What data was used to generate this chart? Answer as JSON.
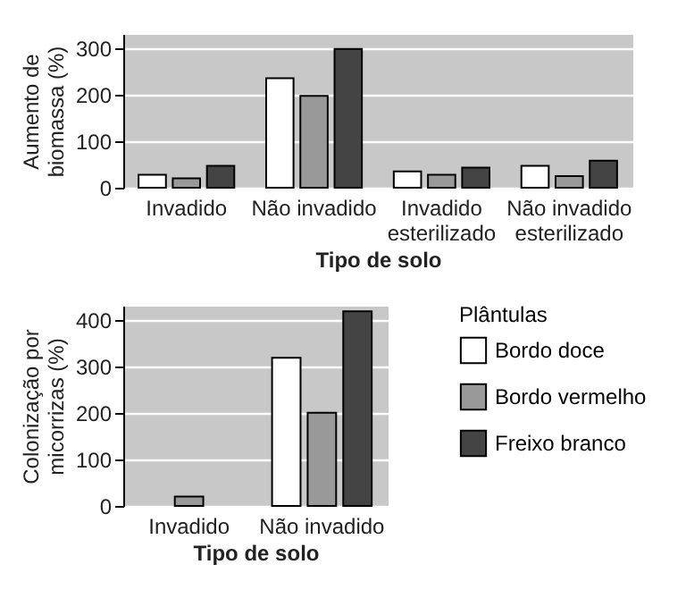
{
  "chart_data": [
    {
      "type": "bar",
      "xlabel": "Tipo de solo",
      "ylabel": "Aumento de biomassa (%)",
      "categories": [
        "Invadido",
        "Não invadido",
        "Invadido esterilizado",
        "Não invadido esterilizado"
      ],
      "series": [
        {
          "color": "#ffffff",
          "values": [
            28,
            235,
            35,
            47
          ]
        },
        {
          "color": "#999999",
          "values": [
            20,
            197,
            28,
            25
          ]
        },
        {
          "color": "#444444",
          "values": [
            47,
            298,
            43,
            58
          ]
        }
      ],
      "ylim": [
        0,
        330
      ],
      "yticks": [
        0,
        100,
        200,
        300
      ],
      "grid": "y",
      "legend": false
    },
    {
      "type": "bar",
      "xlabel": "Tipo de solo",
      "ylabel": "Colonização por micorrizas (%)",
      "legend_title": "Plântulas",
      "categories": [
        "Invadido",
        "Não invadido"
      ],
      "series": [
        {
          "name": "Bordo doce",
          "color": "#ffffff",
          "values": [
            null,
            318
          ]
        },
        {
          "name": "Bordo vermelho",
          "color": "#999999",
          "values": [
            20,
            200
          ]
        },
        {
          "name": "Freixo branco",
          "color": "#444444",
          "values": [
            null,
            418
          ]
        }
      ],
      "ylim": [
        0,
        430
      ],
      "yticks": [
        0,
        100,
        200,
        300,
        400
      ],
      "grid": "y",
      "legend": "right"
    }
  ]
}
